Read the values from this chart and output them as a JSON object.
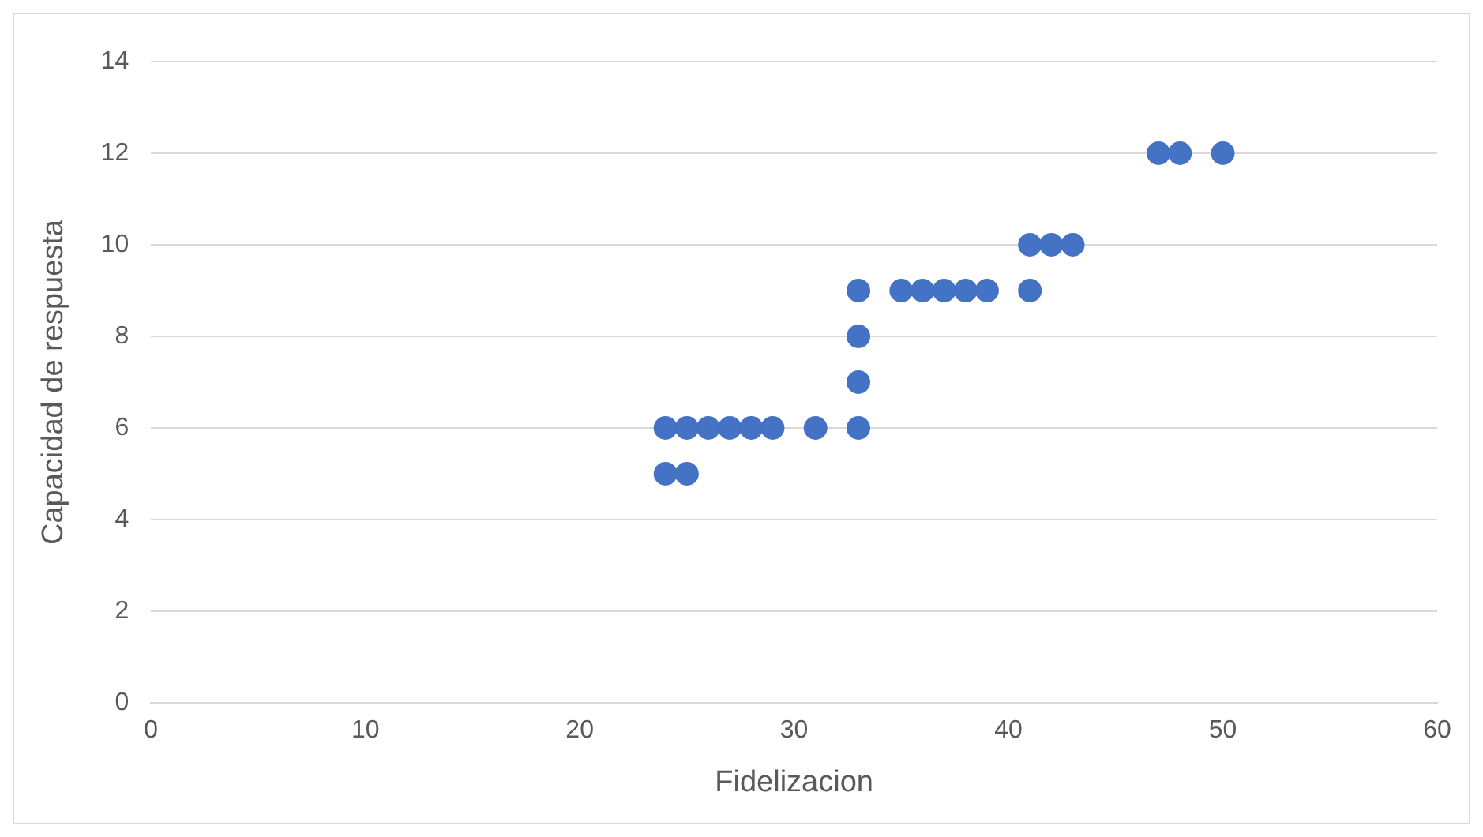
{
  "chart_data": {
    "type": "scatter",
    "xlabel": "Fidelizacion",
    "ylabel": "Capacidad de respuesta",
    "x": [
      24,
      25,
      26,
      27,
      28,
      29,
      31,
      33,
      24,
      25,
      33,
      33,
      33,
      35,
      36,
      37,
      38,
      39,
      41,
      41,
      42,
      43,
      47,
      48,
      50
    ],
    "values": [
      6,
      6,
      6,
      6,
      6,
      6,
      6,
      6,
      5,
      5,
      7,
      8,
      9,
      9,
      9,
      9,
      9,
      9,
      9,
      10,
      10,
      10,
      12,
      12,
      12
    ],
    "color": "#4472c4",
    "marker": "circle",
    "xlim": [
      0,
      60
    ],
    "xticks": [
      0,
      10,
      20,
      30,
      40,
      50,
      60
    ],
    "ylim": [
      0,
      14
    ],
    "yticks": [
      0,
      2,
      4,
      6,
      8,
      10,
      12,
      14
    ],
    "grid": "y",
    "legend": false
  }
}
